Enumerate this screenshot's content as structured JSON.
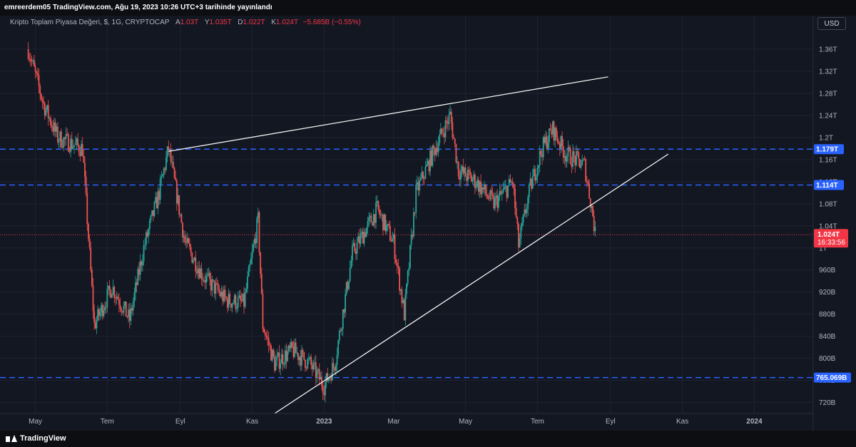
{
  "header": {
    "published": "emreerdem05 TradingView.com, Ağu 19, 2023 10:26 UTC+3 tarihinde yayınlandı"
  },
  "legend": {
    "symbol": "Kripto Toplam Piyasa Değeri, $, 1G, CRYPTOCAP",
    "open_label": "A",
    "open": "1.03T",
    "high_label": "Y",
    "high": "1.035T",
    "low_label": "D",
    "low": "1.022T",
    "close_label": "K",
    "close": "1.024T",
    "change": "−5.685B (−0.55%)"
  },
  "currency_button": "USD",
  "footer": {
    "brand": "TradingView"
  },
  "colors": {
    "background": "#131722",
    "up": "#26a69a",
    "down": "#ef5350",
    "level_line": "#2962ff",
    "price_label": "#f23645",
    "trendline": "#ffffff"
  },
  "chart_data": {
    "type": "candlestick",
    "y_ticks": [
      "720B",
      "760B",
      "800B",
      "840B",
      "880B",
      "920B",
      "960B",
      "1T",
      "1.04T",
      "1.08T",
      "1.12T",
      "1.16T",
      "1.2T",
      "1.24T",
      "1.28T",
      "1.32T",
      "1.36T"
    ],
    "ylim": [
      700,
      1395
    ],
    "x_ticks": [
      {
        "date": "2022-05-01",
        "label": "May"
      },
      {
        "date": "2022-07-01",
        "label": "Tem"
      },
      {
        "date": "2022-09-01",
        "label": "Eyl"
      },
      {
        "date": "2022-11-01",
        "label": "Kas"
      },
      {
        "date": "2023-01-01",
        "label": "2023"
      },
      {
        "date": "2023-03-01",
        "label": "Mar"
      },
      {
        "date": "2023-05-01",
        "label": "May"
      },
      {
        "date": "2023-07-01",
        "label": "Tem"
      },
      {
        "date": "2023-09-01",
        "label": "Eyl"
      },
      {
        "date": "2023-11-01",
        "label": "Kas"
      },
      {
        "date": "2024-01-01",
        "label": "2024"
      }
    ],
    "xlim": [
      "2022-04-01",
      "2024-02-20"
    ],
    "price_levels": [
      {
        "value": 1179,
        "label": "1.179T"
      },
      {
        "value": 1114,
        "label": "1.114T"
      },
      {
        "value": 765.069,
        "label": "765.069B"
      }
    ],
    "current_price": {
      "value": 1024,
      "label": "1.024T",
      "countdown": "16:33:56"
    },
    "trendlines": [
      {
        "start": {
          "date": "2022-08-22",
          "value": 1175
        },
        "end": {
          "date": "2023-08-30",
          "value": 1310
        }
      },
      {
        "start": {
          "date": "2022-11-20",
          "value": 700
        },
        "end": {
          "date": "2023-10-20",
          "value": 1170
        }
      }
    ],
    "anchors": [
      [
        "2022-04-25",
        1360
      ],
      [
        "2022-05-08",
        1260
      ],
      [
        "2022-05-20",
        1200
      ],
      [
        "2022-06-10",
        1180
      ],
      [
        "2022-06-20",
        860
      ],
      [
        "2022-07-05",
        930
      ],
      [
        "2022-07-20",
        870
      ],
      [
        "2022-08-01",
        1000
      ],
      [
        "2022-08-14",
        1100
      ],
      [
        "2022-08-22",
        1180
      ],
      [
        "2022-09-05",
        1010
      ],
      [
        "2022-09-20",
        950
      ],
      [
        "2022-10-10",
        905
      ],
      [
        "2022-10-25",
        900
      ],
      [
        "2022-11-06",
        1050
      ],
      [
        "2022-11-10",
        860
      ],
      [
        "2022-11-20",
        790
      ],
      [
        "2022-12-05",
        815
      ],
      [
        "2022-12-20",
        790
      ],
      [
        "2023-01-01",
        750
      ],
      [
        "2023-01-10",
        790
      ],
      [
        "2023-01-25",
        990
      ],
      [
        "2023-02-15",
        1070
      ],
      [
        "2023-03-01",
        1010
      ],
      [
        "2023-03-10",
        880
      ],
      [
        "2023-03-20",
        1100
      ],
      [
        "2023-04-05",
        1180
      ],
      [
        "2023-04-18",
        1240
      ],
      [
        "2023-04-25",
        1140
      ],
      [
        "2023-05-10",
        1120
      ],
      [
        "2023-05-25",
        1080
      ],
      [
        "2023-06-10",
        1120
      ],
      [
        "2023-06-15",
        1005
      ],
      [
        "2023-06-25",
        1110
      ],
      [
        "2023-07-05",
        1180
      ],
      [
        "2023-07-14",
        1215
      ],
      [
        "2023-07-25",
        1170
      ],
      [
        "2023-08-10",
        1150
      ],
      [
        "2023-08-17",
        1060
      ],
      [
        "2023-08-19",
        1024
      ]
    ]
  }
}
